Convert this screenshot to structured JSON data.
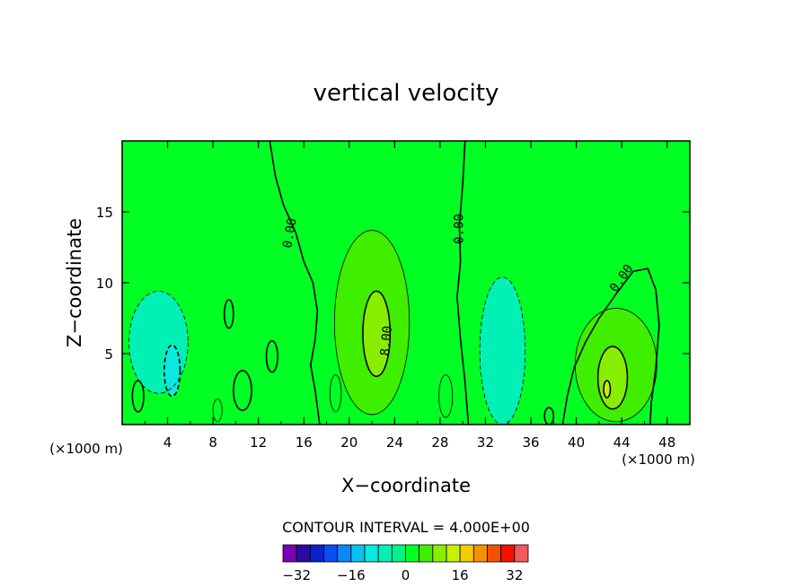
{
  "chart_data": {
    "type": "heatmap",
    "title": "vertical velocity",
    "xlabel": "X−coordinate",
    "ylabel": "Z−coordinate",
    "x_unit_left": "(×1000 m)",
    "x_unit_right": "(×1000 m)",
    "xlim": [
      0,
      50
    ],
    "ylim": [
      0,
      20
    ],
    "x_ticks": [
      4,
      8,
      12,
      16,
      20,
      24,
      28,
      32,
      36,
      40,
      44,
      48
    ],
    "y_ticks": [
      5,
      10,
      15
    ],
    "contour_interval_label": "CONTOUR INTERVAL = 4.000E+00",
    "contour_labels": [
      {
        "text": "0.00",
        "x": 14.8,
        "y": 13.5,
        "angle": -80
      },
      {
        "text": "0.00",
        "x": 29.7,
        "y": 13.8,
        "angle": -90
      },
      {
        "text": "0.00",
        "x": 44.0,
        "y": 10.3,
        "angle": -55
      },
      {
        "text": "8.00",
        "x": 23.3,
        "y": 5.9,
        "angle": -85
      }
    ],
    "features": [
      {
        "value": -6,
        "x": 3.2,
        "y": 5.8,
        "rx": 2.6,
        "ry": 3.6
      },
      {
        "value": -10,
        "x": 4.4,
        "y": 3.8,
        "rx": 0.7,
        "ry": 1.8
      },
      {
        "value": -6,
        "x": 33.5,
        "y": 5.2,
        "rx": 2.0,
        "ry": 5.2
      },
      {
        "value": 6,
        "x": 22.0,
        "y": 7.2,
        "rx": 3.3,
        "ry": 6.5
      },
      {
        "value": 10,
        "x": 22.4,
        "y": 6.4,
        "rx": 1.2,
        "ry": 3.0
      },
      {
        "value": 6,
        "x": 43.5,
        "y": 4.2,
        "rx": 3.6,
        "ry": 4.0
      },
      {
        "value": 10,
        "x": 43.2,
        "y": 3.3,
        "rx": 1.3,
        "ry": 2.2
      },
      {
        "value": 14,
        "x": 42.7,
        "y": 2.5,
        "rx": 0.3,
        "ry": 0.6
      },
      {
        "value": 3,
        "x": 18.8,
        "y": 2.2,
        "rx": 0.5,
        "ry": 1.3
      },
      {
        "value": 3,
        "x": 28.5,
        "y": 2.0,
        "rx": 0.6,
        "ry": 1.5
      },
      {
        "value": 3,
        "x": 8.4,
        "y": 1.0,
        "rx": 0.4,
        "ry": 0.8
      }
    ],
    "colorbar": {
      "min": -36,
      "max": 36,
      "step": 4,
      "tick_values": [
        -32,
        -16,
        0,
        16,
        32
      ],
      "tick_labels": [
        "−32",
        "−16",
        "0",
        "16",
        "32"
      ],
      "colors": [
        "#7a00b3",
        "#2a0aa6",
        "#0f1fcc",
        "#0a4df0",
        "#0a88f5",
        "#0ac0f2",
        "#0ae8e0",
        "#00f0b5",
        "#00f288",
        "#00ff22",
        "#40ee00",
        "#88ee00",
        "#c8ee00",
        "#f0cc00",
        "#f59000",
        "#f55000",
        "#f51000",
        "#f05a5a"
      ]
    }
  }
}
